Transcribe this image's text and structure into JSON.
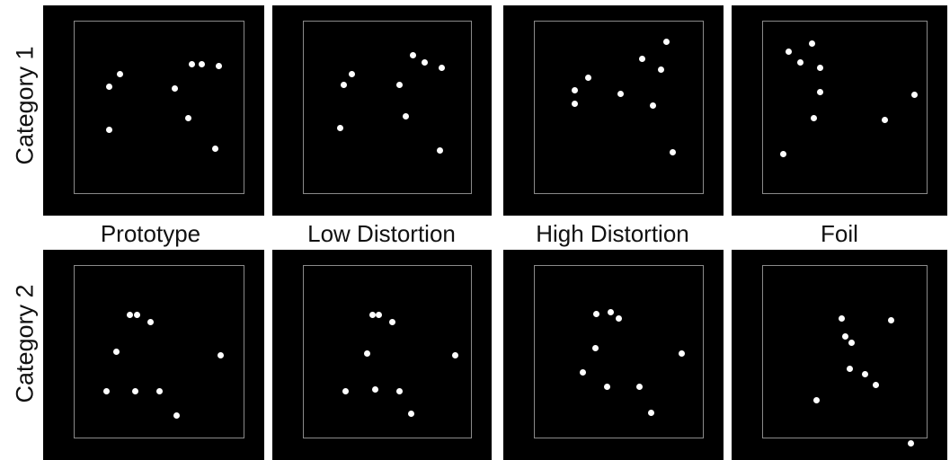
{
  "row_labels": [
    "Category 1",
    "Category 2"
  ],
  "column_labels": [
    "Prototype",
    "Low Distortion",
    "High Distortion",
    "Foil"
  ],
  "colors": {
    "panel_background": "#000000",
    "frame": "#8a8a8a",
    "dot": "#ffffff"
  },
  "stimuli": [
    {
      "name": "cat1-prototype",
      "points": [
        [
          0.21,
          0.38
        ],
        [
          0.27,
          0.31
        ],
        [
          0.21,
          0.63
        ],
        [
          0.59,
          0.39
        ],
        [
          0.69,
          0.25
        ],
        [
          0.75,
          0.25
        ],
        [
          0.85,
          0.26
        ],
        [
          0.67,
          0.56
        ],
        [
          0.83,
          0.74
        ]
      ]
    },
    {
      "name": "cat1-low-distortion",
      "points": [
        [
          0.24,
          0.37
        ],
        [
          0.29,
          0.31
        ],
        [
          0.22,
          0.62
        ],
        [
          0.57,
          0.37
        ],
        [
          0.65,
          0.2
        ],
        [
          0.72,
          0.24
        ],
        [
          0.82,
          0.27
        ],
        [
          0.61,
          0.55
        ],
        [
          0.81,
          0.75
        ]
      ]
    },
    {
      "name": "cat1-high-distortion",
      "points": [
        [
          0.24,
          0.4
        ],
        [
          0.32,
          0.33
        ],
        [
          0.24,
          0.48
        ],
        [
          0.51,
          0.42
        ],
        [
          0.64,
          0.22
        ],
        [
          0.78,
          0.12
        ],
        [
          0.75,
          0.28
        ],
        [
          0.7,
          0.49
        ],
        [
          0.82,
          0.76
        ]
      ]
    },
    {
      "name": "cat1-foil",
      "points": [
        [
          0.16,
          0.18
        ],
        [
          0.23,
          0.24
        ],
        [
          0.3,
          0.13
        ],
        [
          0.35,
          0.27
        ],
        [
          0.35,
          0.41
        ],
        [
          0.31,
          0.56
        ],
        [
          0.13,
          0.77
        ],
        [
          0.74,
          0.57
        ],
        [
          0.92,
          0.43
        ]
      ]
    },
    {
      "name": "cat2-prototype",
      "points": [
        [
          0.33,
          0.29
        ],
        [
          0.37,
          0.29
        ],
        [
          0.45,
          0.33
        ],
        [
          0.25,
          0.5
        ],
        [
          0.86,
          0.52
        ],
        [
          0.19,
          0.73
        ],
        [
          0.36,
          0.73
        ],
        [
          0.5,
          0.73
        ],
        [
          0.6,
          0.87
        ]
      ]
    },
    {
      "name": "cat2-low-distortion",
      "points": [
        [
          0.41,
          0.29
        ],
        [
          0.45,
          0.29
        ],
        [
          0.53,
          0.33
        ],
        [
          0.38,
          0.51
        ],
        [
          0.9,
          0.52
        ],
        [
          0.25,
          0.73
        ],
        [
          0.43,
          0.72
        ],
        [
          0.57,
          0.73
        ],
        [
          0.64,
          0.86
        ]
      ]
    },
    {
      "name": "cat2-high-distortion",
      "points": [
        [
          0.37,
          0.28
        ],
        [
          0.45,
          0.27
        ],
        [
          0.5,
          0.31
        ],
        [
          0.36,
          0.48
        ],
        [
          0.29,
          0.62
        ],
        [
          0.43,
          0.7
        ],
        [
          0.62,
          0.7
        ],
        [
          0.87,
          0.51
        ],
        [
          0.69,
          0.85
        ]
      ]
    },
    {
      "name": "cat2-foil",
      "points": [
        [
          0.48,
          0.31
        ],
        [
          0.78,
          0.32
        ],
        [
          0.5,
          0.41
        ],
        [
          0.54,
          0.45
        ],
        [
          0.53,
          0.6
        ],
        [
          0.62,
          0.63
        ],
        [
          0.69,
          0.69
        ],
        [
          0.33,
          0.78
        ],
        [
          0.9,
          1.03
        ]
      ]
    }
  ]
}
